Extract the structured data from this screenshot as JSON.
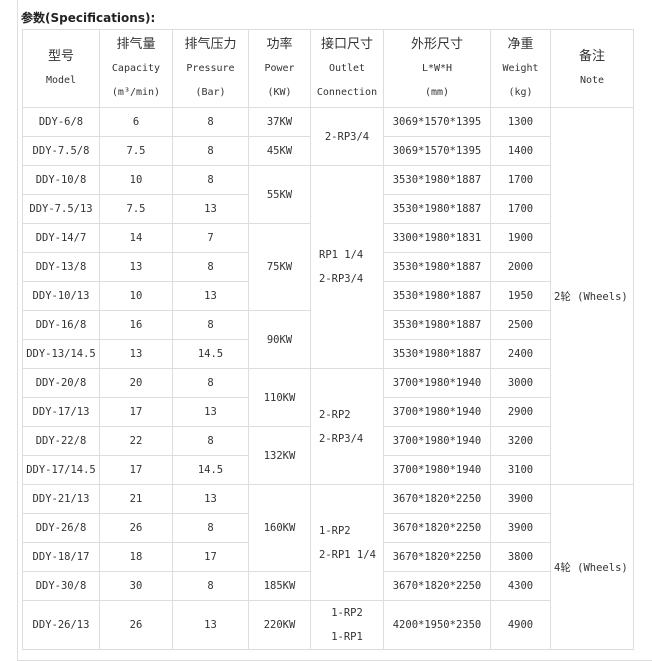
{
  "title": "参数(Specifications):",
  "headers": [
    {
      "zh": "型号",
      "en": "Model",
      "unit": ""
    },
    {
      "zh": "排气量",
      "en": "Capacity",
      "unit": "(m³/min)"
    },
    {
      "zh": "排气压力",
      "en": "Pressure",
      "unit": "(Bar)"
    },
    {
      "zh": "功率",
      "en": "Power",
      "unit": "(KW)"
    },
    {
      "zh": "接口尺寸",
      "en": "Outlet",
      "unit": "Connection"
    },
    {
      "zh": "外形尺寸",
      "en": "L*W*H",
      "unit": "(mm)"
    },
    {
      "zh": "净重",
      "en": "Weight",
      "unit": "(kg)"
    },
    {
      "zh": "备注",
      "en": "Note",
      "unit": ""
    }
  ],
  "rows": [
    {
      "model": "DDY-6/8",
      "capacity": "6",
      "pressure": "8",
      "power": "37KW",
      "outlet": [
        "2-RP3/4"
      ],
      "dims": "3069*1570*1395",
      "weight": "1300",
      "note": "2轮 (Wheels)"
    },
    {
      "model": "DDY-7.5/8",
      "capacity": "7.5",
      "pressure": "8",
      "power": "45KW",
      "dims": "3069*1570*1395",
      "weight": "1400"
    },
    {
      "model": "DDY-10/8",
      "capacity": "10",
      "pressure": "8",
      "power": "55KW",
      "outlet": [
        "RP1 1/4",
        "2-RP3/4"
      ],
      "dims": "3530*1980*1887",
      "weight": "1700"
    },
    {
      "model": "DDY-7.5/13",
      "capacity": "7.5",
      "pressure": "13",
      "dims": "3530*1980*1887",
      "weight": "1700"
    },
    {
      "model": "DDY-14/7",
      "capacity": "14",
      "pressure": "7",
      "power": "75KW",
      "dims": "3300*1980*1831",
      "weight": "1900"
    },
    {
      "model": "DDY-13/8",
      "capacity": "13",
      "pressure": "8",
      "dims": "3530*1980*1887",
      "weight": "2000"
    },
    {
      "model": "DDY-10/13",
      "capacity": "10",
      "pressure": "13",
      "dims": "3530*1980*1887",
      "weight": "1950"
    },
    {
      "model": "DDY-16/8",
      "capacity": "16",
      "pressure": "8",
      "power": "90KW",
      "dims": "3530*1980*1887",
      "weight": "2500"
    },
    {
      "model": "DDY-13/14.5",
      "capacity": "13",
      "pressure": "14.5",
      "dims": "3530*1980*1887",
      "weight": "2400"
    },
    {
      "model": "DDY-20/8",
      "capacity": "20",
      "pressure": "8",
      "power": "110KW",
      "outlet": [
        "2-RP2",
        "2-RP3/4"
      ],
      "dims": "3700*1980*1940",
      "weight": "3000"
    },
    {
      "model": "DDY-17/13",
      "capacity": "17",
      "pressure": "13",
      "dims": "3700*1980*1940",
      "weight": "2900"
    },
    {
      "model": "DDY-22/8",
      "capacity": "22",
      "pressure": "8",
      "power": "132KW",
      "dims": "3700*1980*1940",
      "weight": "3200"
    },
    {
      "model": "DDY-17/14.5",
      "capacity": "17",
      "pressure": "14.5",
      "dims": "3700*1980*1940",
      "weight": "3100"
    },
    {
      "model": "DDY-21/13",
      "capacity": "21",
      "pressure": "13",
      "power": "160KW",
      "outlet": [
        "1-RP2",
        "2-RP1 1/4"
      ],
      "dims": "3670*1820*2250",
      "weight": "3900",
      "note": "4轮 (Wheels)"
    },
    {
      "model": "DDY-26/8",
      "capacity": "26",
      "pressure": "8",
      "dims": "3670*1820*2250",
      "weight": "3900"
    },
    {
      "model": "DDY-18/17",
      "capacity": "18",
      "pressure": "17",
      "dims": "3670*1820*2250",
      "weight": "3800"
    },
    {
      "model": "DDY-30/8",
      "capacity": "30",
      "pressure": "8",
      "power": "185KW",
      "dims": "3670*1820*2250",
      "weight": "4300"
    },
    {
      "model": "DDY-26/13",
      "capacity": "26",
      "pressure": "13",
      "power": "220KW",
      "outlet": [
        "1-RP2",
        "1-RP1"
      ],
      "dims": "4200*1950*2350",
      "weight": "4900"
    }
  ]
}
